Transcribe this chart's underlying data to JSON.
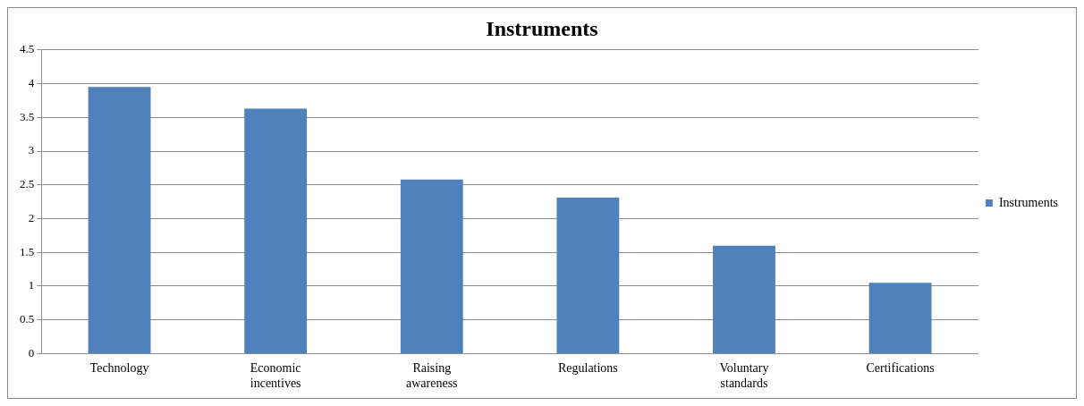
{
  "chart_data": {
    "type": "bar",
    "title": "Instruments",
    "categories": [
      "Technology",
      "Economic incentives",
      "Raising awareness",
      "Regulations",
      "Voluntary standards",
      "Certifications"
    ],
    "series": [
      {
        "name": "Instruments",
        "color": "#4f81bd",
        "values": [
          3.95,
          3.63,
          2.58,
          2.31,
          1.6,
          1.05
        ]
      }
    ],
    "ylim": [
      0,
      4.5
    ],
    "yticks": [
      0,
      0.5,
      1,
      1.5,
      2,
      2.5,
      3,
      3.5,
      4,
      4.5
    ],
    "grid": "y",
    "legend": "right"
  }
}
